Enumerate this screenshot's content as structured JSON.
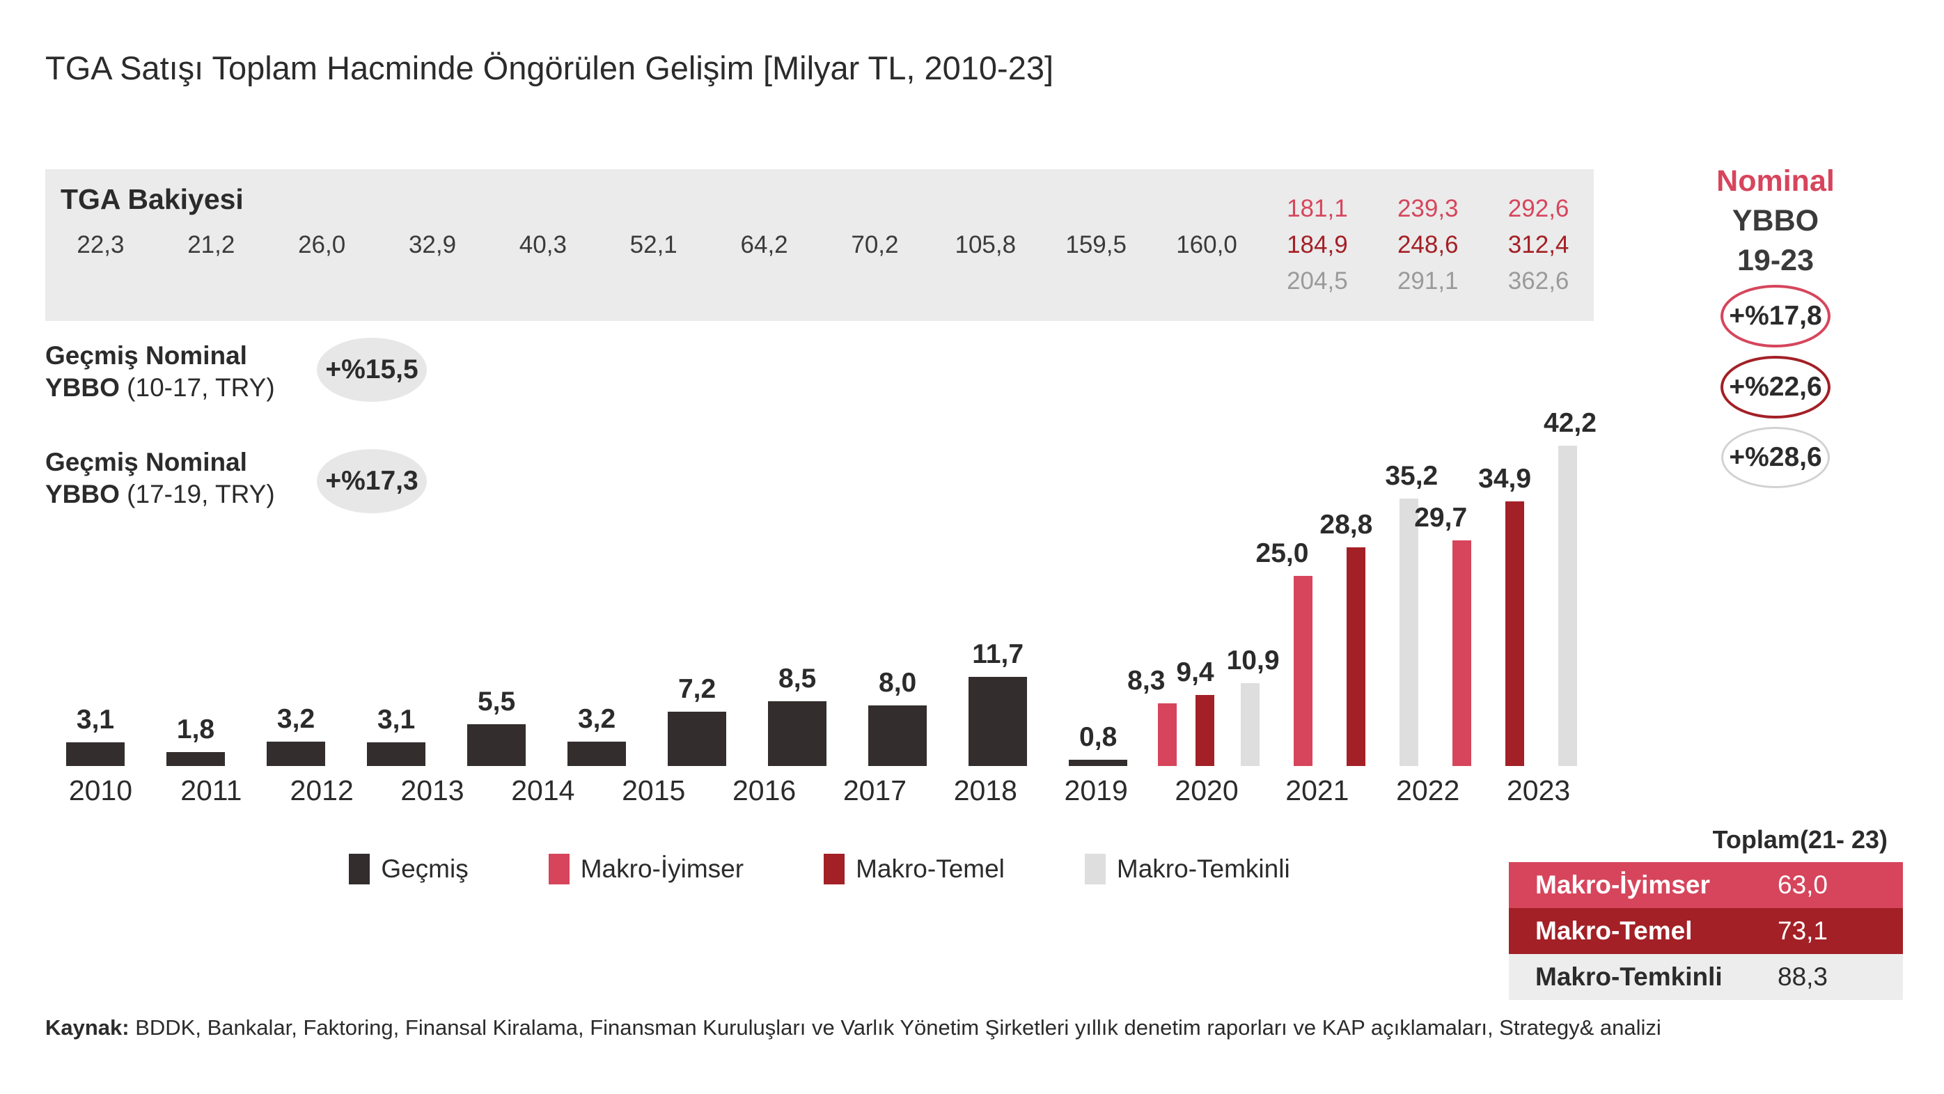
{
  "title": "TGA Satışı Toplam Hacminde Öngörülen Gelişim [Milyar TL, 2010-23]",
  "colors": {
    "dark": "#332D2D",
    "pink": "#D6455C",
    "dark_red": "#A32026",
    "light_gray": "#DEDEDE",
    "band_bg": "#EBEBEB",
    "badge_bg": "#E7E7E7",
    "gray_text": "#9A9A9A"
  },
  "band": {
    "label": "TGA Bakiyesi",
    "columns": [
      {
        "value": "22,3"
      },
      {
        "value": "21,2"
      },
      {
        "value": "26,0"
      },
      {
        "value": "32,9"
      },
      {
        "value": "40,3"
      },
      {
        "value": "52,1"
      },
      {
        "value": "64,2"
      },
      {
        "value": "70,2"
      },
      {
        "value": "105,8"
      },
      {
        "value": "159,5"
      },
      {
        "value": "160,0"
      },
      {
        "optimistic": "181,1",
        "base": "184,9",
        "cautious": "204,5"
      },
      {
        "optimistic": "239,3",
        "base": "248,6",
        "cautious": "291,1"
      },
      {
        "optimistic": "292,6",
        "base": "312,4",
        "cautious": "362,6"
      }
    ]
  },
  "cagr_left": [
    {
      "line1": "Geçmiş Nominal",
      "line2_bold": "YBBO",
      "line2_rest": " (10-17, TRY)",
      "badge": "+%15,5"
    },
    {
      "line1": "Geçmiş Nominal",
      "line2_bold": "YBBO",
      "line2_rest": " (17-19, TRY)",
      "badge": "+%17,3"
    }
  ],
  "nominal_cagr": {
    "line1": "Nominal",
    "line2": "YBBO",
    "line3": "19-23",
    "badges": [
      {
        "label": "+%17,8",
        "style": "pink"
      },
      {
        "label": "+%22,6",
        "style": "dark_red"
      },
      {
        "label": "+%28,6",
        "style": "light_gray"
      }
    ]
  },
  "chart_data": {
    "type": "bar",
    "title": "TGA Satışı Toplam Hacminde Öngörülen Gelişim",
    "unit": "Milyar TL",
    "categories": [
      "2010",
      "2011",
      "2012",
      "2013",
      "2014",
      "2015",
      "2016",
      "2017",
      "2018",
      "2019",
      "2020",
      "2021",
      "2022",
      "2023"
    ],
    "series": [
      {
        "name": "Geçmiş",
        "color_key": "dark",
        "color": "#332D2D",
        "values": [
          3.1,
          1.8,
          3.2,
          3.1,
          5.5,
          3.2,
          7.2,
          8.5,
          8.0,
          11.7,
          0.8,
          null,
          null,
          null
        ]
      },
      {
        "name": "Makro-İyimser",
        "color_key": "pink",
        "color": "#D6455C",
        "values": [
          null,
          null,
          null,
          null,
          null,
          null,
          null,
          null,
          null,
          null,
          null,
          8.3,
          25.0,
          29.7
        ]
      },
      {
        "name": "Makro-Temel",
        "color_key": "dark_red",
        "color": "#A32026",
        "values": [
          null,
          null,
          null,
          null,
          null,
          null,
          null,
          null,
          null,
          null,
          null,
          9.4,
          28.8,
          34.9
        ]
      },
      {
        "name": "Makro-Temkinli",
        "color_key": "light_gray",
        "color": "#DEDEDE",
        "values": [
          null,
          null,
          null,
          null,
          null,
          null,
          null,
          null,
          null,
          null,
          null,
          10.9,
          35.2,
          42.2
        ]
      }
    ],
    "ylim": [
      0,
      45
    ],
    "grid": false,
    "value_labels": true,
    "legend_position": "bottom"
  },
  "legend": [
    {
      "label": "Geçmiş",
      "color_key": "dark"
    },
    {
      "label": "Makro-İyimser",
      "color_key": "pink"
    },
    {
      "label": "Makro-Temel",
      "color_key": "dark_red"
    },
    {
      "label": "Makro-Temkinli",
      "color_key": "light_gray"
    }
  ],
  "table": {
    "header": "Toplam(21- 23)",
    "rows": [
      {
        "label": "Makro-İyimser",
        "value": "63,0",
        "style": "pink"
      },
      {
        "label": "Makro-Temel",
        "value": "73,1",
        "style": "dark_red"
      },
      {
        "label": "Makro-Temkinli",
        "value": "88,3",
        "style": "light_gray"
      }
    ]
  },
  "source": {
    "prefix": "Kaynak:",
    "text": " BDDK, Bankalar, Faktoring, Finansal Kiralama, Finansman Kuruluşları ve Varlık Yönetim Şirketleri yıllık denetim raporları ve KAP açıklamaları, Strategy& analizi"
  }
}
